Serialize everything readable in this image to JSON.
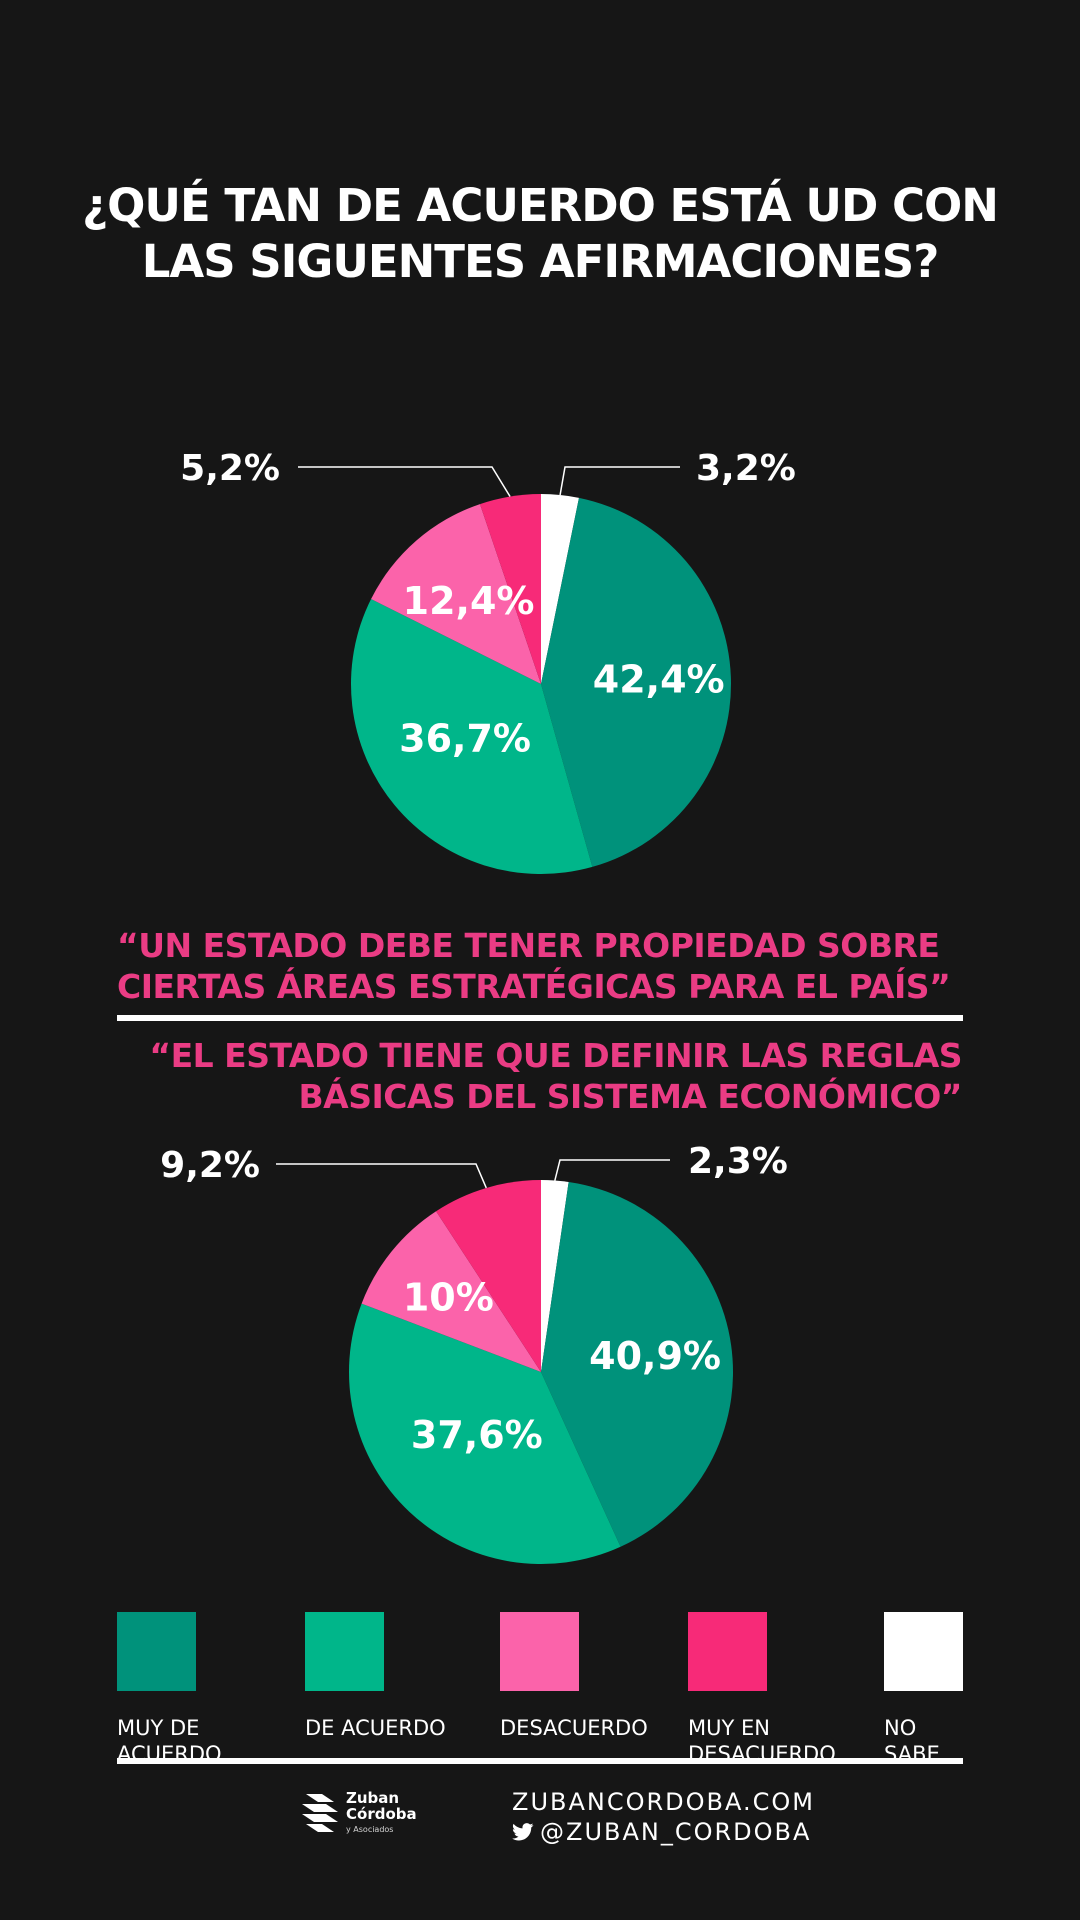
{
  "title": "¿QUÉ TAN DE ACUERDO ESTÁ UD CON LAS SIGUENTES AFIRMACIONES?",
  "colors": {
    "muy_de_acuerdo": "#00927b",
    "de_acuerdo": "#00b68a",
    "desacuerdo": "#fb63aa",
    "muy_en_desacuerdo": "#f72a78",
    "no_sabe": "#ffffff",
    "quote": "#ea3c84",
    "background": "#161616"
  },
  "quotes": [
    "“UN ESTADO DEBE TENER PROPIEDAD SOBRE CIERTAS ÁREAS ESTRATÉGICAS PARA EL PAÍS”",
    "“EL ESTADO TIENE QUE DEFINIR LAS REGLAS BÁSICAS DEL SISTEMA ECONÓMICO”"
  ],
  "legend": [
    {
      "label": "MUY DE\nACUERDO",
      "color": "#00927b"
    },
    {
      "label": "DE ACUERDO",
      "color": "#00b68a"
    },
    {
      "label": "DESACUERDO",
      "color": "#fb63aa"
    },
    {
      "label": "MUY EN\nDESACUERDO",
      "color": "#f72a78"
    },
    {
      "label": "NO\nSABE",
      "color": "#ffffff"
    }
  ],
  "footer": {
    "logo_line1": "Zuban",
    "logo_line2": "Córdoba",
    "logo_sub": "y Asociados",
    "website": "ZUBANCORDOBA.COM",
    "twitter": "@ZUBAN_CORDOBA"
  },
  "chart_data": [
    {
      "type": "pie",
      "title": "“UN ESTADO DEBE TENER PROPIEDAD SOBRE CIERTAS ÁREAS ESTRATÉGICAS PARA EL PAÍS”",
      "categories": [
        "NO SABE",
        "MUY DE ACUERDO",
        "DE ACUERDO",
        "DESACUERDO",
        "MUY EN DESACUERDO"
      ],
      "values": [
        3.2,
        42.4,
        36.7,
        12.4,
        5.2
      ],
      "labels": [
        "3,2%",
        "42,4%",
        "36,7%",
        "12,4%",
        "5,2%"
      ]
    },
    {
      "type": "pie",
      "title": "“EL ESTADO TIENE QUE DEFINIR LAS REGLAS BÁSICAS DEL SISTEMA ECONÓMICO”",
      "categories": [
        "NO SABE",
        "MUY DE ACUERDO",
        "DE ACUERDO",
        "DESACUERDO",
        "MUY EN DESACUERDO"
      ],
      "values": [
        2.3,
        40.9,
        37.6,
        10,
        9.2
      ],
      "labels": [
        "2,3%",
        "40,9%",
        "37,6%",
        "10%",
        "9,2%"
      ]
    }
  ]
}
